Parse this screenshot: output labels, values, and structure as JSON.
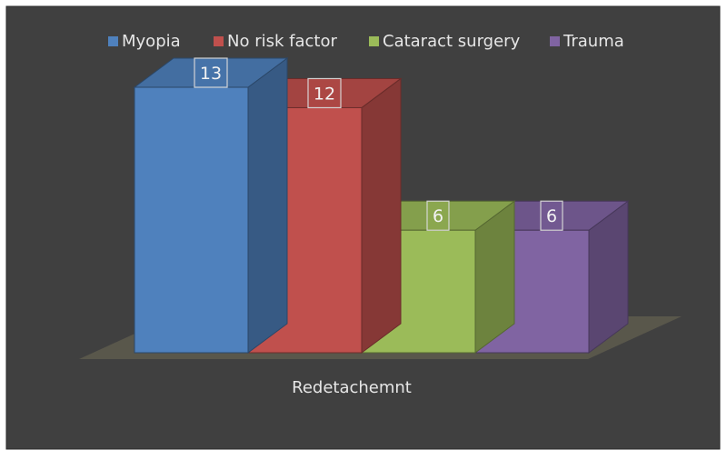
{
  "chart_data": {
    "type": "bar",
    "categories": [
      "Redetachemnt"
    ],
    "series": [
      {
        "name": "Myopia",
        "values": [
          13
        ],
        "color": "#4f81bd"
      },
      {
        "name": "No risk factor",
        "values": [
          12
        ],
        "color": "#c0504d"
      },
      {
        "name": "Cataract surgery",
        "values": [
          6
        ],
        "color": "#9bbb59"
      },
      {
        "name": "Trauma",
        "values": [
          6
        ],
        "color": "#8064a2"
      }
    ],
    "title": "",
    "xlabel": "",
    "ylabel": "",
    "ylim": [
      0,
      13
    ],
    "grid": false,
    "legend": "top",
    "three_d": true,
    "data_labels": true,
    "background": "#404040",
    "text_color": "#e6e6e6"
  }
}
